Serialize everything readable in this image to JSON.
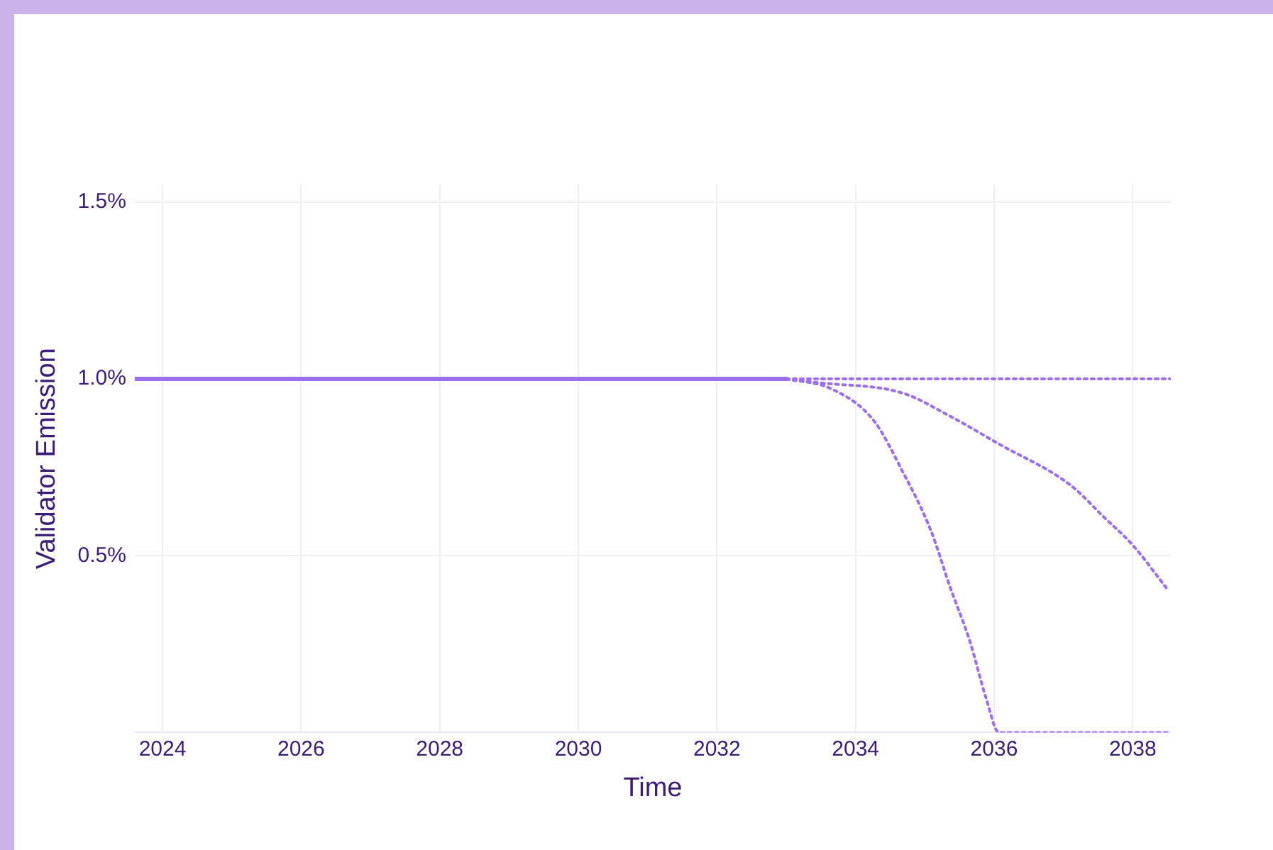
{
  "chart_data": {
    "type": "line",
    "xlabel": "Time",
    "ylabel": "Validator Emission",
    "xlim": [
      2023.6,
      2038.55
    ],
    "xticks": [
      2024,
      2026,
      2028,
      2030,
      2032,
      2034,
      2036,
      2038
    ],
    "ylim": [
      0,
      1.55
    ],
    "yticks": [
      {
        "value": 0.5,
        "label": "0.5%"
      },
      {
        "value": 1.0,
        "label": "1.0%"
      },
      {
        "value": 1.5,
        "label": "1.5%"
      }
    ],
    "grid": true,
    "marker": "none",
    "series": [
      {
        "color": "#9c6ef0",
        "line_style": "solid",
        "x": [
          2023.6,
          2033
        ],
        "values": [
          1.0,
          1.0
        ]
      },
      {
        "color": "#9c6ef0",
        "line_style": "dotted",
        "x": [
          2033,
          2038.55
        ],
        "values": [
          1.0,
          1.0
        ]
      },
      {
        "color": "#9c6ef0",
        "line_style": "dotted",
        "x": [
          2033,
          2033.43,
          2034.68,
          2035.36,
          2036.07,
          2037.1,
          2037.58,
          2038,
          2038.52
        ],
        "values": [
          1.0,
          0.99,
          0.96,
          0.895,
          0.816,
          0.7,
          0.61,
          0.53,
          0.4
        ]
      },
      {
        "color": "#9c6ef0",
        "line_style": "dotted",
        "x": [
          2033,
          2033.64,
          2034.26,
          2034.68,
          2035.09,
          2035.36,
          2035.65,
          2035.88,
          2036.07,
          2038.55
        ],
        "values": [
          1.0,
          0.973,
          0.883,
          0.738,
          0.57,
          0.414,
          0.258,
          0.1,
          0,
          0
        ]
      }
    ]
  }
}
